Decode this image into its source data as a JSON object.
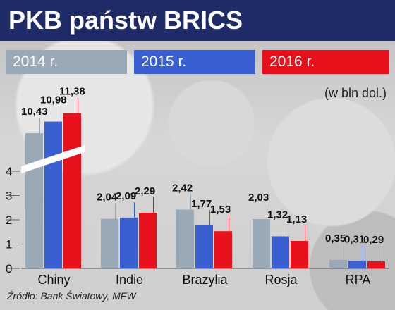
{
  "chart_data": {
    "type": "bar",
    "title": "PKB państw BRICS",
    "unit_note": "(w bln dol.)",
    "source": "Źródło: Bank Światowy, MFW",
    "categories": [
      "Chiny",
      "Indie",
      "Brazylia",
      "Rosja",
      "RPA"
    ],
    "yticks": [
      "0",
      "1",
      "2",
      "3",
      "4"
    ],
    "ylim": [
      0,
      4.5
    ],
    "axis_break": true,
    "series": [
      {
        "name": "2014 r.",
        "color": "#9aa9b6",
        "values": [
          10.43,
          2.04,
          2.42,
          2.03,
          0.35
        ],
        "labels": [
          "10,43",
          "2,04",
          "2,42",
          "2,03",
          "0,35"
        ]
      },
      {
        "name": "2015 r.",
        "color": "#3a5fd0",
        "values": [
          10.98,
          2.09,
          1.77,
          1.32,
          0.31
        ],
        "labels": [
          "10,98",
          "2,09",
          "1,77",
          "1,32",
          "0,31"
        ]
      },
      {
        "name": "2016 r.",
        "color": "#e8101a",
        "values": [
          11.38,
          2.29,
          1.53,
          1.13,
          0.29
        ],
        "labels": [
          "11,38",
          "2,29",
          "1,53",
          "1,13",
          "0,29"
        ]
      }
    ]
  }
}
